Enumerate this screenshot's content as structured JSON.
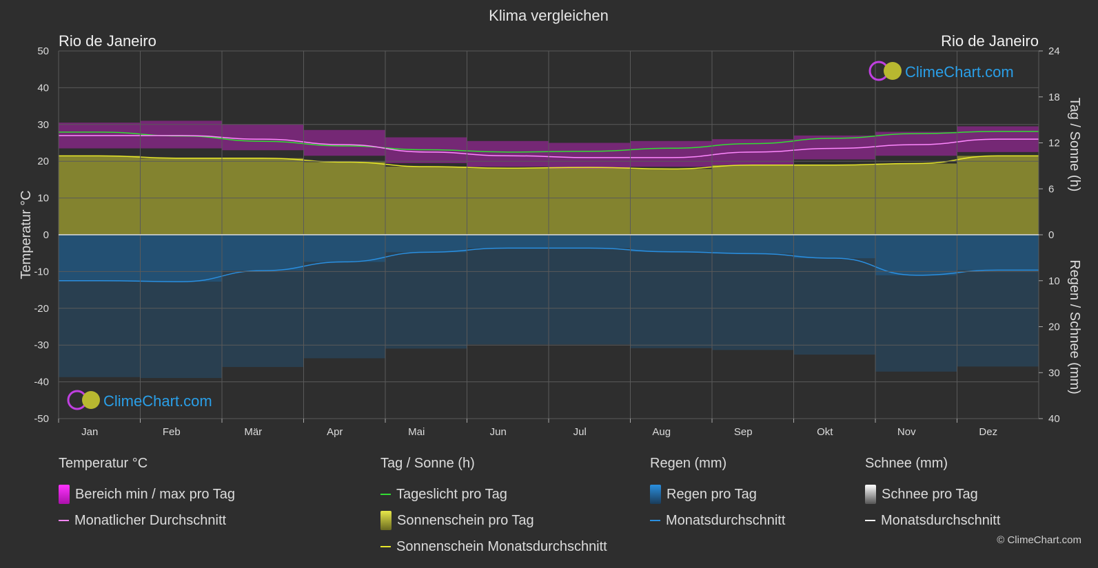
{
  "title": "Klima vergleichen",
  "location_left": "Rio de Janeiro",
  "location_right": "Rio de Janeiro",
  "watermark": "ClimeChart.com",
  "copyright": "© ClimeChart.com",
  "colors": {
    "background": "#2e2e2e",
    "temp_range": "#cc22cc",
    "temp_avg": "#ff88ff",
    "daylight": "#33dd33",
    "sunshine_fill": "#a8a830",
    "sunshine_avg": "#e8e82a",
    "rain_fill": "#1f5f8f",
    "rain_avg": "#2a8fe0",
    "snow_avg": "#ffffff",
    "brand_blue": "#2a9fe8"
  },
  "legend": {
    "temperature": {
      "heading": "Temperatur °C",
      "range": "Bereich min / max pro Tag",
      "avg": "Monatlicher Durchschnitt"
    },
    "sun": {
      "heading": "Tag / Sonne (h)",
      "daylight": "Tageslicht pro Tag",
      "sunshine": "Sonnenschein pro Tag",
      "sunshine_avg": "Sonnenschein Monatsdurchschnitt"
    },
    "rain": {
      "heading": "Regen (mm)",
      "per_day": "Regen pro Tag",
      "avg": "Monatsdurchschnitt"
    },
    "snow": {
      "heading": "Schnee (mm)",
      "per_day": "Schnee pro Tag",
      "avg": "Monatsdurchschnitt"
    }
  },
  "chart_data": {
    "type": "area",
    "categories": [
      "Jan",
      "Feb",
      "Mär",
      "Apr",
      "Mai",
      "Jun",
      "Jul",
      "Aug",
      "Sep",
      "Okt",
      "Nov",
      "Dez"
    ],
    "axes": {
      "left": {
        "label": "Temperatur °C",
        "range": [
          -50,
          50
        ],
        "ticks": [
          50,
          40,
          30,
          20,
          10,
          0,
          -10,
          -20,
          -30,
          -40,
          -50
        ]
      },
      "right_top": {
        "label": "Tag / Sonne (h)",
        "range": [
          0,
          24
        ],
        "ticks": [
          24,
          18,
          12,
          6,
          0
        ]
      },
      "right_bottom": {
        "label": "Regen / Schnee (mm)",
        "range": [
          0,
          40
        ],
        "ticks": [
          0,
          10,
          20,
          30,
          40
        ]
      }
    },
    "grid": true,
    "series": [
      {
        "name": "Bereich min / max pro Tag",
        "type": "range",
        "unit": "°C",
        "min": [
          23.5,
          23.5,
          23.0,
          21.5,
          19.5,
          18.5,
          18.0,
          18.5,
          19.0,
          20.5,
          21.5,
          22.5
        ],
        "max": [
          30.5,
          31.0,
          30.0,
          28.5,
          26.5,
          25.5,
          25.0,
          25.5,
          26.0,
          27.0,
          28.0,
          29.5
        ]
      },
      {
        "name": "Monatlicher Durchschnitt",
        "type": "line",
        "unit": "°C",
        "values": [
          27.0,
          27.0,
          26.0,
          24.5,
          22.5,
          21.5,
          21.0,
          21.0,
          22.5,
          23.5,
          24.5,
          26.0
        ]
      },
      {
        "name": "Tageslicht pro Tag",
        "type": "line",
        "unit": "h",
        "values": [
          13.4,
          12.9,
          12.2,
          11.6,
          11.1,
          10.8,
          10.9,
          11.3,
          11.9,
          12.6,
          13.2,
          13.5
        ]
      },
      {
        "name": "Sonnenschein pro Tag",
        "type": "area",
        "unit": "h",
        "values": [
          10.3,
          10.0,
          10.0,
          9.5,
          8.9,
          8.7,
          8.8,
          8.6,
          9.1,
          9.1,
          9.3,
          10.3
        ]
      },
      {
        "name": "Sonnenschein Monatsdurchschnitt",
        "type": "line",
        "unit": "h",
        "values": [
          10.3,
          10.0,
          10.0,
          9.5,
          8.9,
          8.7,
          8.8,
          8.6,
          9.1,
          9.1,
          9.3,
          10.3
        ]
      },
      {
        "name": "Regen pro Tag",
        "type": "bars",
        "unit": "mm",
        "values": [
          10.0,
          10.2,
          7.8,
          5.9,
          3.8,
          2.9,
          2.9,
          3.7,
          4.1,
          5.1,
          8.8,
          7.7
        ]
      },
      {
        "name": "Monatsdurchschnitt",
        "type": "line",
        "unit": "mm",
        "values": [
          10.0,
          10.2,
          7.8,
          5.9,
          3.8,
          2.9,
          2.9,
          3.7,
          4.1,
          5.1,
          8.8,
          7.7
        ]
      },
      {
        "name": "Schnee pro Tag",
        "type": "bars",
        "unit": "mm",
        "values": [
          0,
          0,
          0,
          0,
          0,
          0,
          0,
          0,
          0,
          0,
          0,
          0
        ]
      }
    ]
  }
}
